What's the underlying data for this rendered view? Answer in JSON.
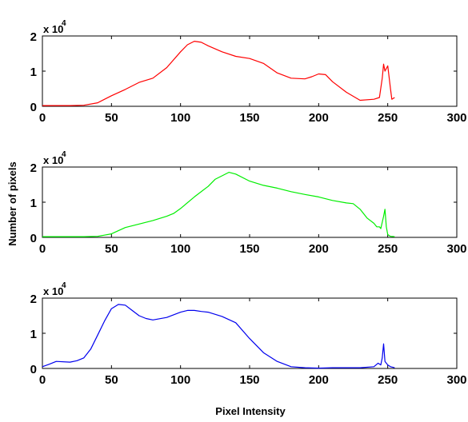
{
  "chart_data": {
    "type": "line",
    "xlabel": "Pixel Intensity",
    "ylabel": "Number of pixels",
    "xlim": [
      0,
      300
    ],
    "x_ticks": [
      0,
      50,
      100,
      150,
      200,
      250,
      300
    ],
    "ylim": [
      0,
      2
    ],
    "y_ticks": [
      0,
      1,
      2
    ],
    "y_multiplier": {
      "base": "x 10",
      "exponent": "4"
    },
    "panels": [
      {
        "color": "#ff0000",
        "x": [
          0,
          20,
          30,
          40,
          50,
          60,
          70,
          75,
          80,
          90,
          100,
          105,
          110,
          115,
          120,
          130,
          140,
          150,
          160,
          170,
          180,
          190,
          195,
          200,
          205,
          210,
          220,
          230,
          240,
          244,
          246,
          247,
          248,
          250,
          252,
          253,
          255
        ],
        "y": [
          0.02,
          0.02,
          0.03,
          0.1,
          0.3,
          0.48,
          0.68,
          0.74,
          0.8,
          1.1,
          1.55,
          1.75,
          1.85,
          1.82,
          1.72,
          1.55,
          1.42,
          1.36,
          1.22,
          0.95,
          0.8,
          0.78,
          0.84,
          0.92,
          0.9,
          0.7,
          0.4,
          0.17,
          0.2,
          0.25,
          0.8,
          1.2,
          1.0,
          1.15,
          0.5,
          0.2,
          0.25
        ]
      },
      {
        "color": "#00ee00",
        "x": [
          0,
          30,
          40,
          50,
          60,
          70,
          80,
          90,
          95,
          100,
          110,
          120,
          125,
          130,
          135,
          140,
          150,
          160,
          170,
          180,
          190,
          200,
          210,
          220,
          225,
          230,
          235,
          240,
          242,
          244,
          245,
          247,
          248,
          249,
          250,
          252,
          255
        ],
        "y": [
          0.02,
          0.02,
          0.03,
          0.1,
          0.28,
          0.38,
          0.48,
          0.6,
          0.68,
          0.82,
          1.15,
          1.45,
          1.65,
          1.75,
          1.85,
          1.8,
          1.6,
          1.48,
          1.4,
          1.3,
          1.22,
          1.15,
          1.05,
          0.98,
          0.96,
          0.8,
          0.55,
          0.4,
          0.3,
          0.3,
          0.25,
          0.6,
          0.8,
          0.3,
          0.08,
          0.03,
          0.02
        ]
      },
      {
        "color": "#0000ee",
        "x": [
          0,
          5,
          10,
          20,
          25,
          30,
          35,
          40,
          45,
          50,
          55,
          60,
          65,
          70,
          75,
          80,
          90,
          100,
          105,
          110,
          115,
          120,
          130,
          140,
          150,
          160,
          170,
          180,
          190,
          200,
          210,
          230,
          240,
          243,
          245,
          246,
          247,
          248,
          250,
          252,
          255
        ],
        "y": [
          0.05,
          0.12,
          0.2,
          0.18,
          0.22,
          0.3,
          0.55,
          0.95,
          1.35,
          1.7,
          1.82,
          1.8,
          1.65,
          1.5,
          1.42,
          1.38,
          1.45,
          1.6,
          1.65,
          1.65,
          1.62,
          1.6,
          1.48,
          1.3,
          0.85,
          0.45,
          0.2,
          0.05,
          0.02,
          0.01,
          0.02,
          0.02,
          0.05,
          0.15,
          0.1,
          0.3,
          0.7,
          0.2,
          0.1,
          0.05,
          0.02
        ]
      }
    ]
  }
}
